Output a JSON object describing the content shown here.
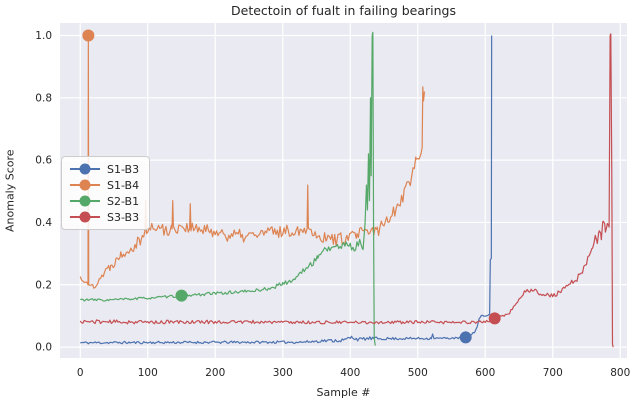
{
  "chart_data": {
    "type": "line",
    "title": "Detectoin of fualt in failing bearings",
    "xlabel": "Sample #",
    "ylabel": "Anomaly Score",
    "xlim": [
      -30,
      810
    ],
    "ylim": [
      -0.035,
      1.04
    ],
    "xticks": [
      0,
      100,
      200,
      300,
      400,
      500,
      600,
      700,
      800
    ],
    "ytick_values": [
      0.0,
      0.2,
      0.4,
      0.6,
      0.8,
      1.0
    ],
    "ytick_labels": [
      "0.0",
      "0.2",
      "0.4",
      "0.6",
      "0.8",
      "1.0"
    ],
    "grid": true,
    "plot_background": "#eaeaf2",
    "grid_color": "#ffffff",
    "text_color": "#262626",
    "legend_position": "center-left",
    "noise_step": 2,
    "marker_radius": 6,
    "line_width": 1.2,
    "series": [
      {
        "name": "S1-B3",
        "color": "#4c72b0",
        "seed": 11,
        "marker": [
          571,
          0.031
        ],
        "anchors": [
          [
            0,
            0.014,
            0.004
          ],
          [
            150,
            0.015,
            0.004
          ],
          [
            330,
            0.016,
            0.004
          ],
          [
            360,
            0.02,
            0.005
          ],
          [
            390,
            0.022,
            0.006
          ],
          [
            403,
            0.032,
            0.007
          ],
          [
            412,
            0.024,
            0.005
          ],
          [
            425,
            0.028,
            0.006
          ],
          [
            445,
            0.027,
            0.004
          ],
          [
            520,
            0.028,
            0.004
          ],
          [
            522,
            0.042,
            0
          ],
          [
            524,
            0.028,
            0.003
          ],
          [
            558,
            0.029,
            0.003
          ],
          [
            572,
            0.031,
            0.003
          ],
          [
            580,
            0.04,
            0.004
          ],
          [
            586,
            0.055,
            0.005
          ],
          [
            591,
            0.09,
            0.006
          ],
          [
            594,
            0.1,
            0.003
          ],
          [
            604,
            0.103,
            0.003
          ],
          [
            606.5,
            0.105,
            0
          ],
          [
            607.5,
            0.28,
            0
          ],
          [
            609,
            0.285,
            0
          ],
          [
            609.5,
            1.0,
            0
          ]
        ]
      },
      {
        "name": "S1-B4",
        "color": "#dd8452",
        "seed": 22,
        "marker": [
          12,
          1.0
        ],
        "anchors": [
          [
            0,
            0.225,
            0.012
          ],
          [
            8,
            0.21,
            0.01
          ],
          [
            11.5,
            0.2,
            0
          ],
          [
            12,
            1.0,
            0
          ],
          [
            12.5,
            0.2,
            0
          ],
          [
            20,
            0.195,
            0.012
          ],
          [
            30,
            0.225,
            0.015
          ],
          [
            45,
            0.26,
            0.015
          ],
          [
            60,
            0.3,
            0.018
          ],
          [
            75,
            0.32,
            0.02
          ],
          [
            90,
            0.35,
            0.022
          ],
          [
            96,
            0.37,
            0.02
          ],
          [
            97,
            0.47,
            0
          ],
          [
            98,
            0.37,
            0.02
          ],
          [
            110,
            0.385,
            0.022
          ],
          [
            125,
            0.375,
            0.022
          ],
          [
            136,
            0.38,
            0.02
          ],
          [
            137,
            0.47,
            0
          ],
          [
            138,
            0.38,
            0.02
          ],
          [
            150,
            0.39,
            0.02
          ],
          [
            162,
            0.38,
            0.02
          ],
          [
            163,
            0.46,
            0
          ],
          [
            164,
            0.38,
            0.02
          ],
          [
            180,
            0.375,
            0.02
          ],
          [
            200,
            0.37,
            0.02
          ],
          [
            220,
            0.36,
            0.022
          ],
          [
            240,
            0.355,
            0.022
          ],
          [
            260,
            0.36,
            0.02
          ],
          [
            280,
            0.37,
            0.02
          ],
          [
            300,
            0.37,
            0.02
          ],
          [
            320,
            0.375,
            0.02
          ],
          [
            336,
            0.38,
            0.015
          ],
          [
            337,
            0.52,
            0
          ],
          [
            338,
            0.38,
            0.015
          ],
          [
            350,
            0.36,
            0.02
          ],
          [
            365,
            0.35,
            0.02
          ],
          [
            380,
            0.345,
            0.02
          ],
          [
            395,
            0.35,
            0.02
          ],
          [
            410,
            0.36,
            0.022
          ],
          [
            425,
            0.37,
            0.022
          ],
          [
            440,
            0.375,
            0.025
          ],
          [
            452,
            0.4,
            0.02
          ],
          [
            462,
            0.43,
            0.02
          ],
          [
            472,
            0.46,
            0.025
          ],
          [
            480,
            0.5,
            0.025
          ],
          [
            487,
            0.53,
            0.03
          ],
          [
            493,
            0.57,
            0.025
          ],
          [
            498,
            0.6,
            0.02
          ],
          [
            502,
            0.61,
            0.015
          ],
          [
            505,
            0.62,
            0.008
          ],
          [
            506.5,
            0.64,
            0
          ],
          [
            507.5,
            0.835,
            0
          ],
          [
            508.5,
            0.79,
            0
          ],
          [
            510,
            0.82,
            0
          ]
        ]
      },
      {
        "name": "S2-B1",
        "color": "#55a868",
        "seed": 33,
        "marker": [
          150,
          0.165
        ],
        "anchors": [
          [
            0,
            0.152,
            0.004
          ],
          [
            40,
            0.151,
            0.004
          ],
          [
            80,
            0.155,
            0.004
          ],
          [
            120,
            0.16,
            0.004
          ],
          [
            150,
            0.165,
            0.004
          ],
          [
            185,
            0.17,
            0.005
          ],
          [
            220,
            0.175,
            0.005
          ],
          [
            255,
            0.18,
            0.005
          ],
          [
            285,
            0.19,
            0.006
          ],
          [
            300,
            0.205,
            0.006
          ],
          [
            312,
            0.21,
            0.006
          ],
          [
            322,
            0.228,
            0.007
          ],
          [
            333,
            0.25,
            0.008
          ],
          [
            343,
            0.265,
            0.01
          ],
          [
            352,
            0.29,
            0.01
          ],
          [
            362,
            0.315,
            0.012
          ],
          [
            375,
            0.32,
            0.012
          ],
          [
            388,
            0.325,
            0.013
          ],
          [
            400,
            0.33,
            0.016
          ],
          [
            408,
            0.31,
            0.018
          ],
          [
            414,
            0.35,
            0.018
          ],
          [
            419,
            0.31,
            0.015
          ],
          [
            422,
            0.4,
            0
          ],
          [
            424,
            0.52,
            0
          ],
          [
            425.5,
            0.44,
            0
          ],
          [
            427,
            0.62,
            0
          ],
          [
            428.5,
            0.47,
            0
          ],
          [
            430,
            0.8,
            0
          ],
          [
            431,
            0.55,
            0
          ],
          [
            432.5,
            1.0,
            0
          ],
          [
            433.5,
            1.01,
            0
          ],
          [
            434.5,
            0.4,
            0
          ],
          [
            435.5,
            0.03,
            0
          ],
          [
            437,
            0.005,
            0
          ]
        ]
      },
      {
        "name": "S3-B3",
        "color": "#c44e52",
        "seed": 44,
        "marker": [
          614,
          0.092
        ],
        "anchors": [
          [
            0,
            0.082,
            0.006
          ],
          [
            100,
            0.08,
            0.006
          ],
          [
            200,
            0.081,
            0.006
          ],
          [
            300,
            0.08,
            0.005
          ],
          [
            400,
            0.079,
            0.005
          ],
          [
            500,
            0.08,
            0.005
          ],
          [
            560,
            0.079,
            0.005
          ],
          [
            600,
            0.081,
            0.004
          ],
          [
            612,
            0.088,
            0.004
          ],
          [
            620,
            0.096,
            0.004
          ],
          [
            630,
            0.103,
            0.005
          ],
          [
            640,
            0.118,
            0.006
          ],
          [
            648,
            0.145,
            0.007
          ],
          [
            654,
            0.165,
            0.008
          ],
          [
            660,
            0.18,
            0.008
          ],
          [
            666,
            0.175,
            0.008
          ],
          [
            672,
            0.185,
            0.008
          ],
          [
            678,
            0.17,
            0.008
          ],
          [
            686,
            0.172,
            0.007
          ],
          [
            694,
            0.165,
            0.007
          ],
          [
            702,
            0.168,
            0.008
          ],
          [
            710,
            0.175,
            0.009
          ],
          [
            718,
            0.19,
            0.01
          ],
          [
            726,
            0.205,
            0.01
          ],
          [
            734,
            0.215,
            0.01
          ],
          [
            742,
            0.235,
            0.01
          ],
          [
            748,
            0.26,
            0.012
          ],
          [
            754,
            0.295,
            0.012
          ],
          [
            759,
            0.315,
            0.012
          ],
          [
            763,
            0.355,
            0.014
          ],
          [
            766,
            0.33,
            0.012
          ],
          [
            769,
            0.38,
            0.015
          ],
          [
            772,
            0.35,
            0.015
          ],
          [
            775,
            0.41,
            0.015
          ],
          [
            778,
            0.37,
            0.012
          ],
          [
            781,
            0.4,
            0.01
          ],
          [
            783.5,
            0.385,
            0
          ],
          [
            785,
            1.0,
            0
          ],
          [
            786,
            1.005,
            0
          ],
          [
            787.5,
            0.55,
            0
          ],
          [
            788.5,
            0.01,
            0
          ],
          [
            789.5,
            0.0,
            0
          ]
        ]
      }
    ]
  }
}
